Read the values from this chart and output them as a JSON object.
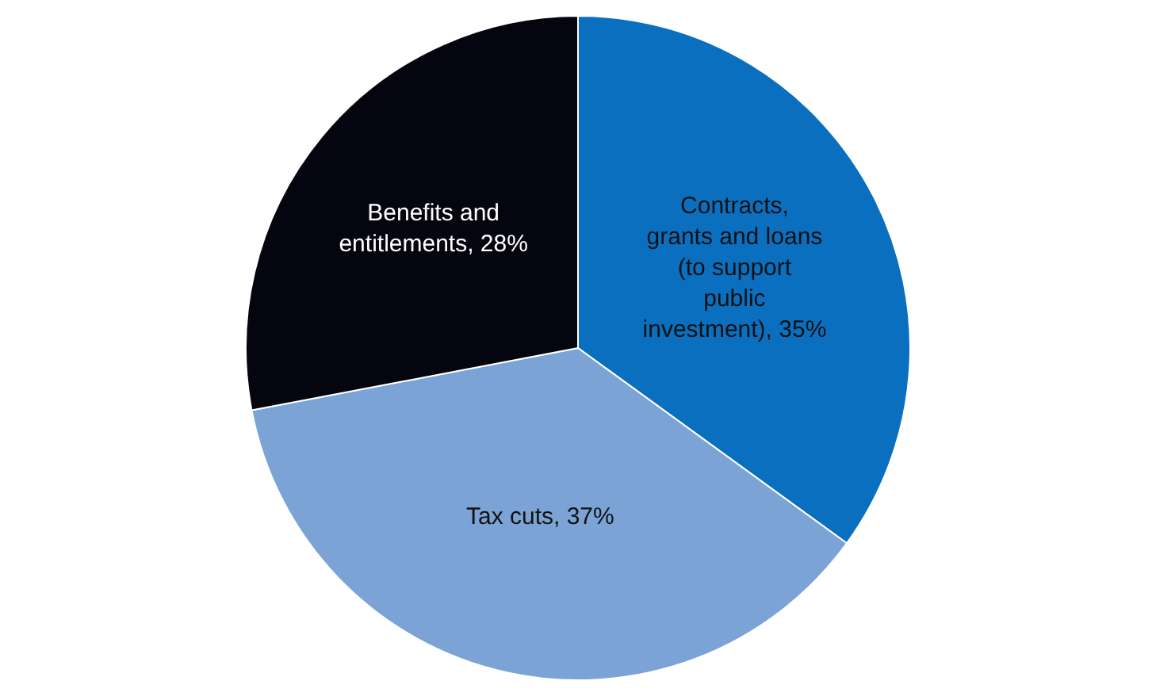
{
  "chart_data": {
    "type": "pie",
    "categories": [
      "Contracts, grants and loans (to support public investment)",
      "Tax cuts",
      "Benefits and entitlements"
    ],
    "values": [
      35,
      37,
      28
    ],
    "value_labels": [
      "35%",
      "37%",
      "28%"
    ],
    "colors": [
      "#0b6fc0",
      "#7ba3d6",
      "#05050f"
    ],
    "legend": false
  }
}
